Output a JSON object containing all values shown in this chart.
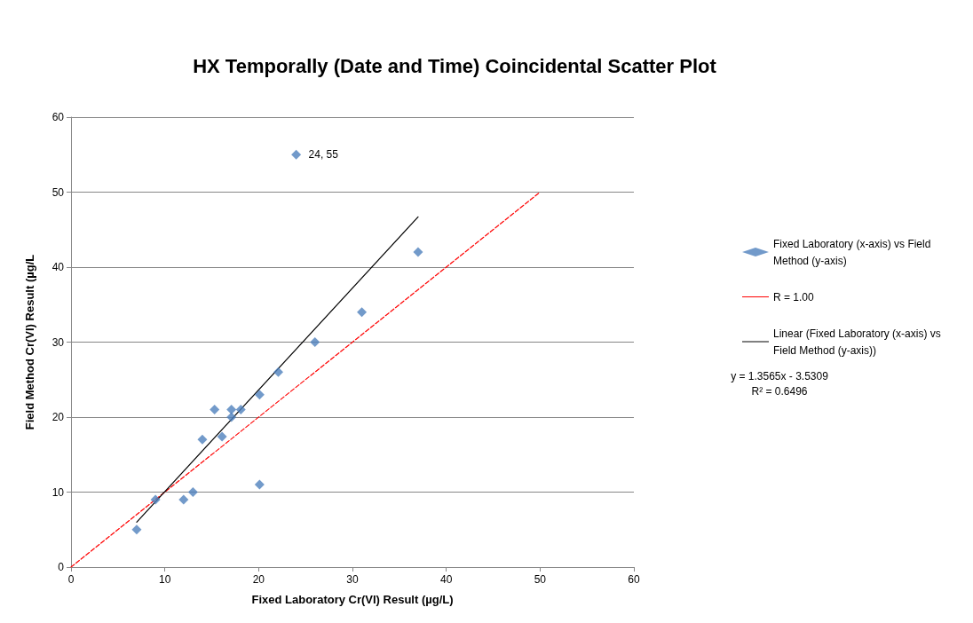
{
  "chart_data": {
    "type": "scatter",
    "title": "HX Temporally (Date and Time) Coincidental Scatter Plot",
    "xlabel": "Fixed Laboratory Cr(VI) Result (µg/L)",
    "ylabel": "Field Method Cr(VI) Result (µg/L",
    "series": [
      {
        "name": "Fixed Laboratory (x-axis) vs Field Method (y-axis)",
        "color": "#4f81bd",
        "marker": "diamond",
        "x": [
          7,
          9,
          12,
          13,
          14,
          15.3,
          16.1,
          17.1,
          17.1,
          18.1,
          20.1,
          20.1,
          22.1,
          24,
          26,
          31,
          37
        ],
        "values": [
          5,
          9,
          9,
          10,
          17,
          21,
          17.4,
          20,
          21,
          21,
          23,
          11,
          26,
          55,
          30,
          34,
          42
        ]
      },
      {
        "name": "R = 1.00",
        "type": "line",
        "color": "#ff0000",
        "line_style": "dashed",
        "x": [
          0,
          50
        ],
        "values": [
          0,
          50
        ]
      },
      {
        "name": "Linear (Fixed Laboratory (x-axis) vs Field Method (y-axis))",
        "type": "line",
        "color": "#000000",
        "line_style": "solid",
        "x": [
          7,
          37
        ],
        "values": [
          6.0,
          46.7
        ]
      }
    ],
    "annotations": [
      {
        "text": "24, 55",
        "x": 24,
        "y": 55
      },
      "y = 1.3565x - 3.5309\nR² = 0.6496"
    ],
    "xlim": [
      0,
      60
    ],
    "xticks": [
      0,
      10,
      20,
      30,
      40,
      50,
      60
    ],
    "ylim": [
      0,
      60
    ],
    "yticks": [
      0,
      10,
      20,
      30,
      40,
      50,
      60
    ],
    "grid": "y",
    "legend": "right"
  }
}
